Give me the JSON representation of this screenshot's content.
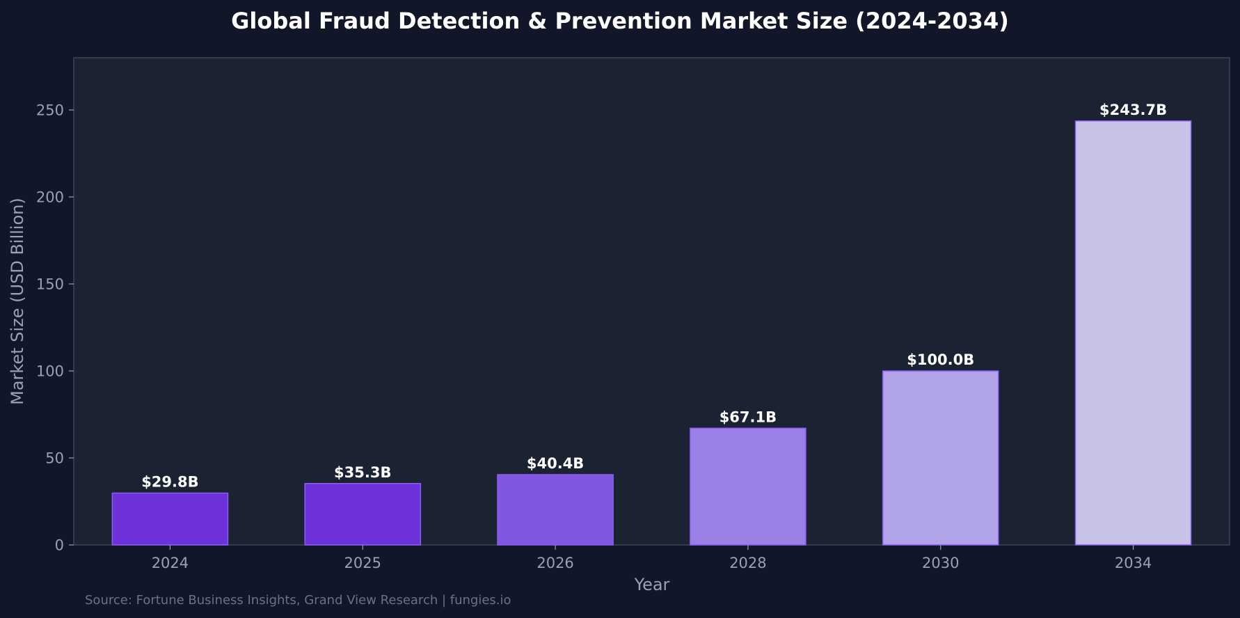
{
  "chart_data": {
    "type": "bar",
    "title": "Global Fraud Detection & Prevention Market Size (2024-2034)",
    "xlabel": "Year",
    "ylabel": "Market Size (USD Billion)",
    "categories": [
      "2024",
      "2025",
      "2026",
      "2028",
      "2030",
      "2034"
    ],
    "values": [
      29.8,
      35.3,
      40.4,
      67.1,
      100.0,
      243.7
    ],
    "value_labels": [
      "$29.8B",
      "$35.3B",
      "$40.4B",
      "$67.1B",
      "$100.0B",
      "$243.7B"
    ],
    "bar_colors": [
      "#6d32d9",
      "#6d32d9",
      "#7f57e0",
      "#9a80e5",
      "#b1a3e8",
      "#c8c2e9"
    ],
    "bar_edge_color": "#8b5cf6",
    "ylim": [
      0,
      280
    ],
    "yticks": [
      0,
      50,
      100,
      150,
      200,
      250
    ],
    "grid": false,
    "legend": "none",
    "source": "Source: Fortune Business Insights, Grand View Research | fungies.io"
  },
  "colors": {
    "background": "#111729",
    "plot_background": "#1b2332",
    "axis": "#3c4556",
    "text": "#ffffff",
    "muted_text": "#9aa1b1",
    "source_text": "#6b7285"
  }
}
